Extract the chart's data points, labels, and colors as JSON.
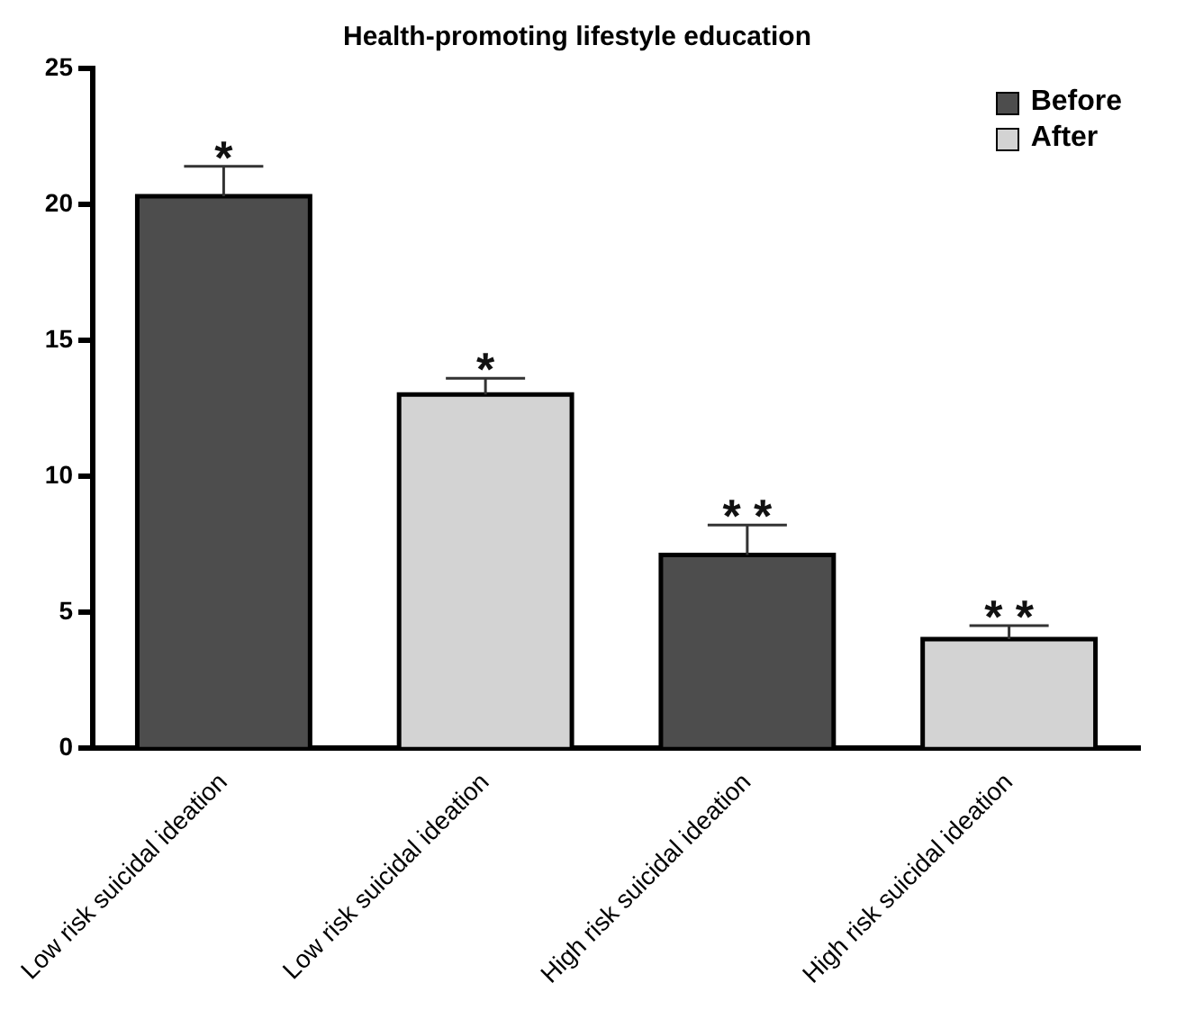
{
  "chart_data": {
    "type": "bar",
    "title": "Health-promoting lifestyle education",
    "categories": [
      "Low risk suicidal ideation",
      "Low risk suicidal ideation",
      "High risk suicidal ideation",
      "High risk suicidal ideation"
    ],
    "series": [
      {
        "name": "Before",
        "color": "#4d4d4d",
        "values": [
          20.3,
          null,
          7.1,
          null
        ],
        "errors": [
          [
            20.3,
            21.4
          ],
          null,
          [
            7.1,
            8.2
          ],
          null
        ]
      },
      {
        "name": "After",
        "color": "#d3d3d3",
        "values": [
          null,
          13.0,
          null,
          4.0
        ],
        "errors": [
          null,
          [
            13.0,
            13.6
          ],
          null,
          [
            4.0,
            4.5
          ]
        ]
      }
    ],
    "annotations": [
      "*",
      "*",
      "**",
      "**"
    ],
    "ylim": [
      0,
      25
    ],
    "yticks": [
      0,
      5,
      10,
      15,
      20,
      25
    ],
    "grid": false,
    "legend": "top right"
  }
}
